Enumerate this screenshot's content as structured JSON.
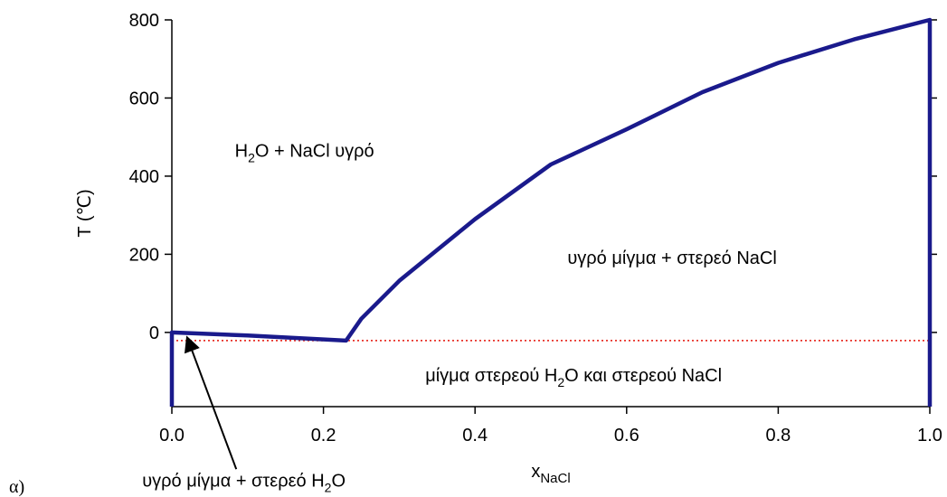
{
  "chart_data": {
    "type": "line",
    "title": "",
    "xlabel": {
      "main": "x",
      "sub": "NaCl"
    },
    "ylabel": "T (℃)",
    "xlim": [
      0,
      1
    ],
    "ylim": [
      -190,
      800
    ],
    "x_ticks": [
      0,
      0.2,
      0.4,
      0.6,
      0.8,
      1.0
    ],
    "x_tick_labels": [
      "0.0",
      "0.2",
      "0.4",
      "0.6",
      "0.8",
      "1.0"
    ],
    "y_ticks": [
      0,
      200,
      400,
      600,
      800
    ],
    "y_tick_labels": [
      "0",
      "200",
      "400",
      "600",
      "800"
    ],
    "grid": false,
    "series": [
      {
        "color": "#1a1a8c",
        "style": "solid",
        "x": [
          0,
          0,
          0.1,
          0.23,
          0.25,
          0.3,
          0.4,
          0.5,
          0.6,
          0.7,
          0.8,
          0.9,
          1.0,
          1.0
        ],
        "y": [
          -190,
          0,
          -8,
          -21,
          35,
          132,
          290,
          430,
          520,
          615,
          690,
          750,
          800,
          -190
        ]
      },
      {
        "color": "#e8332a",
        "style": "dotted",
        "x": [
          0,
          1.0
        ],
        "y": [
          -21,
          -21
        ]
      }
    ],
    "annotations": [
      {
        "kind": "chem",
        "x": 0.175,
        "y": 450,
        "parts": [
          "H",
          "2",
          "O + NaCl υγρό"
        ]
      },
      {
        "kind": "plain",
        "x": 0.66,
        "y": 175,
        "text": "υγρό μίγμα + στερεό NaCl"
      },
      {
        "kind": "chem",
        "x": 0.53,
        "y": -125,
        "parts": [
          "μίγμα στερεού H",
          "2",
          "O και στερεού NaCl"
        ]
      },
      {
        "kind": "chem",
        "x": 0.095,
        "y": -395,
        "parts": [
          "υγρό μίγμα + στερεό H",
          "2",
          "O"
        ],
        "arrow_to": [
          0.02,
          -12
        ],
        "arrow_from": [
          0.085,
          -350
        ]
      }
    ],
    "panel_label": "α)"
  }
}
